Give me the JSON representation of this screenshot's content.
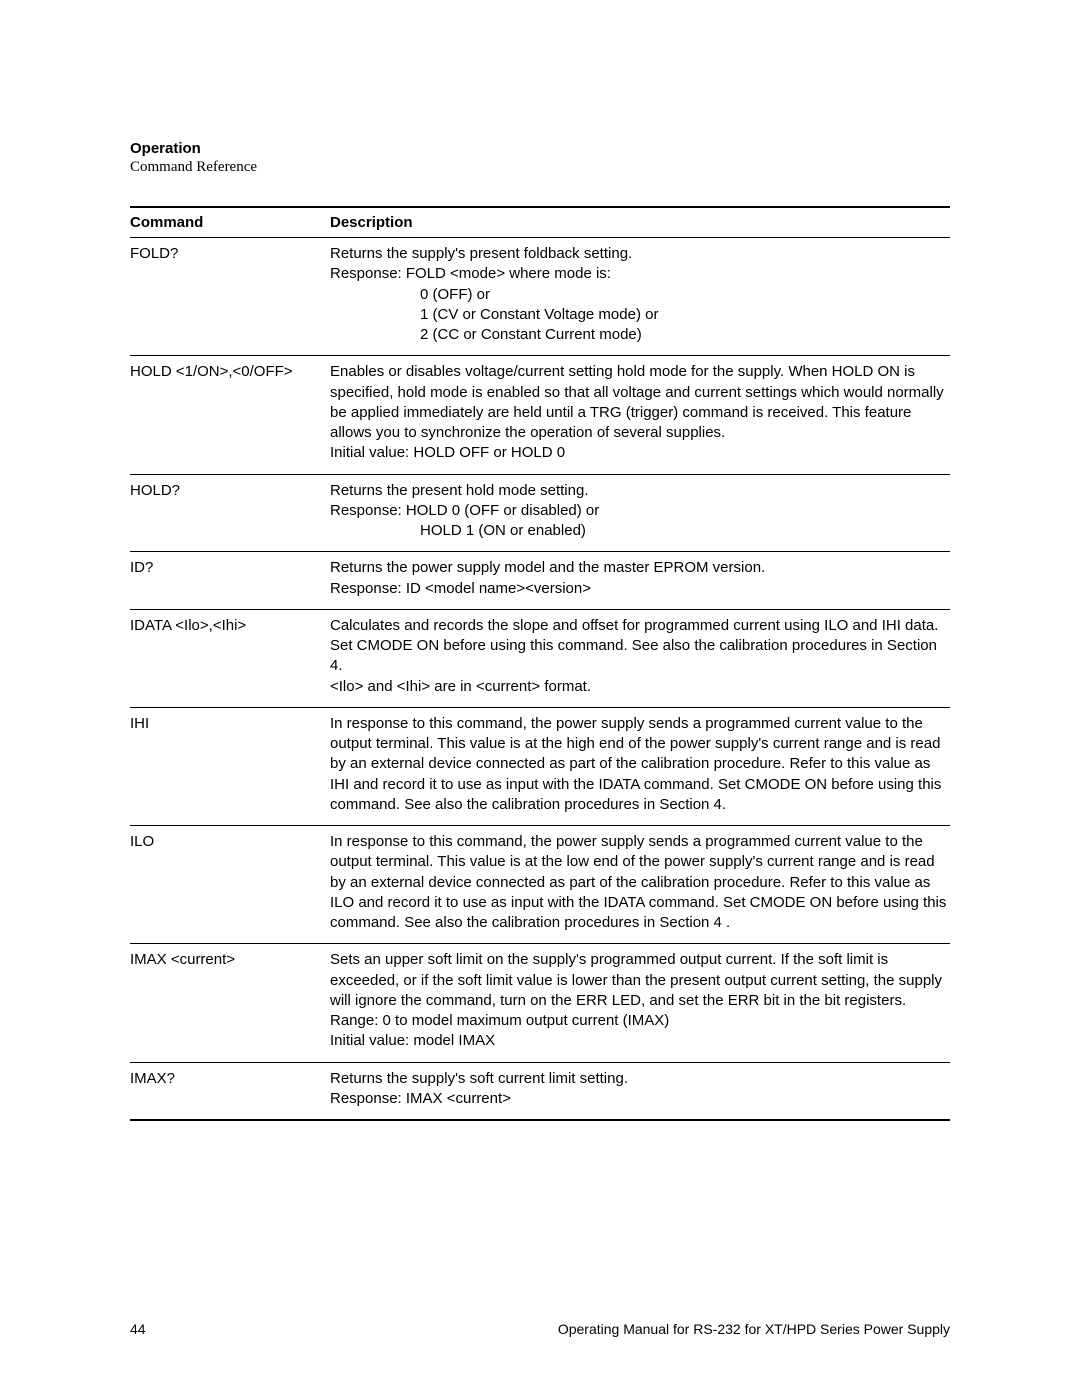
{
  "header": {
    "section": "Operation",
    "subsection": "Command Reference"
  },
  "table": {
    "columns": [
      "Command",
      "Description"
    ],
    "rows": [
      {
        "command": "FOLD?",
        "lines": [
          {
            "text": "Returns the supply's present foldback setting.",
            "indent": 0
          },
          {
            "text": "Response: FOLD <mode> where mode is:",
            "indent": 0
          },
          {
            "text": "0 (OFF) or",
            "indent": 1
          },
          {
            "text": "1 (CV or Constant Voltage mode) or",
            "indent": 1
          },
          {
            "text": "2 (CC or Constant Current mode)",
            "indent": 1
          }
        ]
      },
      {
        "command": "HOLD <1/ON>,<0/OFF>",
        "lines": [
          {
            "text": "Enables or disables voltage/current setting hold mode for the supply. When HOLD ON is specified, hold mode is enabled so that all voltage and current settings which would normally be applied immediately are held until a TRG (trigger) command is received. This feature allows you to synchronize the operation of several supplies.",
            "indent": 0
          },
          {
            "text": "Initial value: HOLD OFF or HOLD 0",
            "indent": 0
          }
        ]
      },
      {
        "command": "HOLD?",
        "lines": [
          {
            "text": "Returns the present hold mode setting.",
            "indent": 0
          },
          {
            "text": "Response:  HOLD 0 (OFF or disabled) or",
            "indent": 0
          },
          {
            "text": "HOLD 1 (ON or enabled)",
            "indent": 2
          }
        ]
      },
      {
        "command": "ID?",
        "lines": [
          {
            "text": "Returns the power supply model and the master EPROM version.",
            "indent": 0
          },
          {
            "text": "Response: ID <model name><version>",
            "indent": 0
          }
        ]
      },
      {
        "command": "IDATA <Ilo>,<Ihi>",
        "lines": [
          {
            "text": "Calculates and records the slope and offset for programmed current using ILO and IHI data. Set CMODE ON before using this command. See also the calibration procedures in Section 4.",
            "indent": 0
          },
          {
            "text": "<Ilo> and <Ihi> are in <current> format.",
            "indent": 0
          }
        ]
      },
      {
        "command": "IHI",
        "lines": [
          {
            "text": "In response to this command, the power supply sends a programmed current value to the output terminal. This value is at the high end of the power supply's current range and is read by an external device connected as part of the calibration procedure. Refer to this value as IHI and record it to use as input with the IDATA command. Set CMODE ON before using this command. See also the calibration procedures in Section 4.",
            "indent": 0
          }
        ]
      },
      {
        "command": "ILO",
        "lines": [
          {
            "text": "In response to this command, the power supply sends a programmed current value to the output terminal. This value is at the low end of the power supply's current range and is read by an external device connected as part of the calibration procedure. Refer to this value as ILO and record it to use as input with the IDATA command. Set CMODE ON before using this command. See also the calibration procedures in Section 4 .",
            "indent": 0
          }
        ]
      },
      {
        "command": "IMAX <current>",
        "lines": [
          {
            "text": "Sets an upper soft limit on the supply's programmed output current. If the soft limit is exceeded, or if the soft limit value is lower than the present output current setting, the supply will ignore the command, turn on the ERR LED, and set the ERR bit in the bit registers.",
            "indent": 0
          },
          {
            "text": "Range: 0 to model maximum output current (IMAX)",
            "indent": 0
          },
          {
            "text": "Initial value: model IMAX",
            "indent": 0
          }
        ]
      },
      {
        "command": "IMAX?",
        "lines": [
          {
            "text": "Returns the supply's soft current limit setting.",
            "indent": 0
          },
          {
            "text": "Response: IMAX <current>",
            "indent": 0
          }
        ]
      }
    ]
  },
  "footer": {
    "page_number": "44",
    "manual_title": "Operating Manual for RS-232 for XT/HPD Series Power Supply"
  }
}
